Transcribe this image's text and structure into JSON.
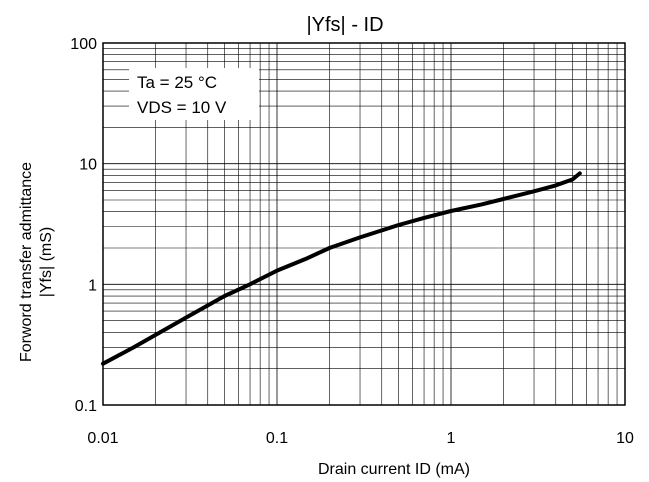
{
  "chart_data": {
    "type": "line",
    "title": "|Yfs| - ID",
    "xlabel": "Drain current ID (mA)",
    "ylabel_lines": [
      "Forword transfer admittance",
      "|Yfs| (mS)"
    ],
    "x_scale": "log",
    "y_scale": "log",
    "xlim": [
      0.01,
      10
    ],
    "ylim": [
      0.1,
      100
    ],
    "x_ticks": [
      0.01,
      0.1,
      1,
      10
    ],
    "x_tick_labels": [
      "0.01",
      "0.1",
      "1",
      "10"
    ],
    "y_ticks": [
      0.1,
      1,
      10,
      100
    ],
    "y_tick_labels": [
      "0.1",
      "1",
      "10",
      "100"
    ],
    "grid": true,
    "annotations": [
      "Ta = 25 °C",
      "VDS = 10 V"
    ],
    "series": [
      {
        "color": "#000000",
        "x": [
          0.01,
          0.015,
          0.02,
          0.03,
          0.05,
          0.07,
          0.1,
          0.15,
          0.2,
          0.3,
          0.5,
          0.7,
          1,
          1.5,
          2,
          3,
          4,
          5,
          5.5
        ],
        "y": [
          0.22,
          0.3,
          0.38,
          0.53,
          0.8,
          1.0,
          1.3,
          1.65,
          2.0,
          2.45,
          3.1,
          3.55,
          4.05,
          4.6,
          5.1,
          5.9,
          6.6,
          7.4,
          8.3
        ]
      }
    ]
  }
}
